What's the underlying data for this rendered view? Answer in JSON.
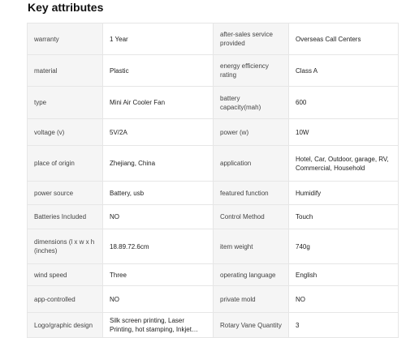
{
  "section": {
    "title": "Key attributes"
  },
  "rows": [
    [
      "warranty",
      "1 Year",
      "after-sales service provided",
      "Overseas Call Centers"
    ],
    [
      "material",
      "Plastic",
      "energy efficiency rating",
      "Class A"
    ],
    [
      "type",
      "Mini Air Cooler Fan",
      "battery capacity(mah)",
      "600"
    ],
    [
      "voltage (v)",
      "5V/2A",
      "power (w)",
      "10W"
    ],
    [
      "place of origin",
      "Zhejiang, China",
      "application",
      "Hotel, Car, Outdoor, garage, RV, Commercial, Household"
    ],
    [
      "power source",
      "Battery, usb",
      "featured function",
      "Humidify"
    ],
    [
      "Batteries Included",
      "NO",
      "Control Method",
      "Touch"
    ],
    [
      "dimensions (l x w x h (inches)",
      "18.89.72.6cm",
      "item weight",
      "740g"
    ],
    [
      "wind speed",
      "Three",
      "operating language",
      "English"
    ],
    [
      "app-controlled",
      "NO",
      "private mold",
      "NO"
    ],
    [
      "Logo/graphic design",
      "Silk screen printing, Laser Printing, hot stamping, Inkjet…",
      "Rotary Vane Quantity",
      "3"
    ]
  ]
}
